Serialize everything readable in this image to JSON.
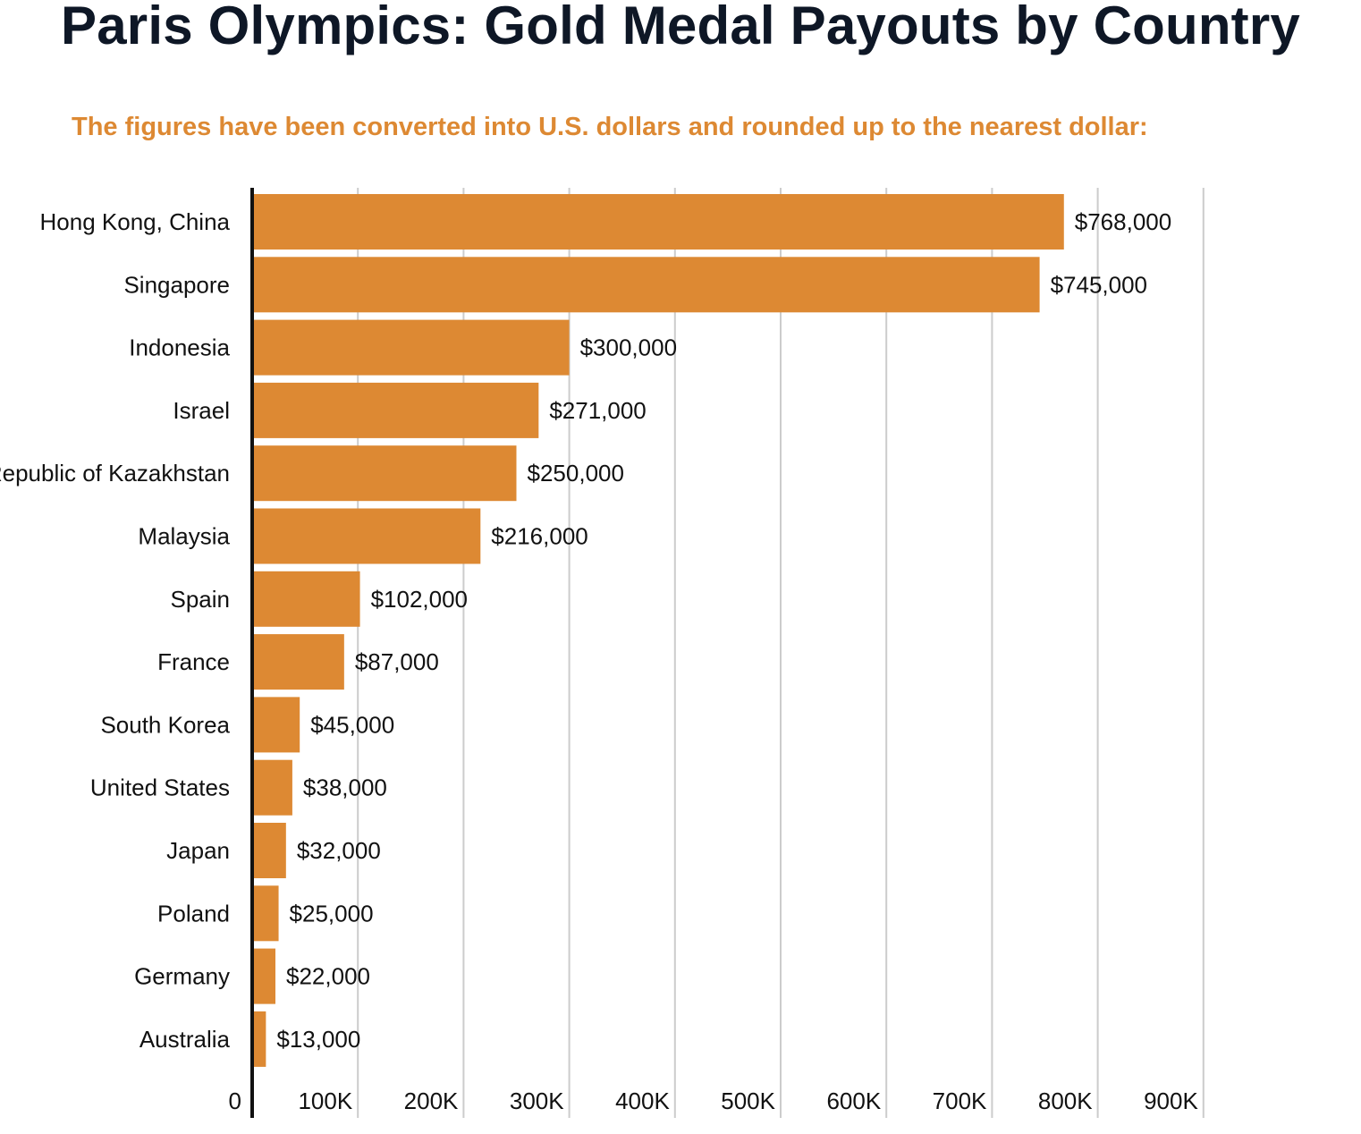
{
  "title": "Paris Olympics: Gold Medal Payouts by Country",
  "subtitle": "The figures have been converted into U.S. dollars and rounded up to the nearest dollar:",
  "colors": {
    "bar": "#dd8933",
    "subtitle": "#dd8933",
    "title": "#0e1726",
    "grid": "#cccccc",
    "axis": "#111111"
  },
  "chart_data": {
    "type": "bar",
    "orientation": "horizontal",
    "categories": [
      "Hong Kong, China",
      "Singapore",
      "Indonesia",
      "Israel",
      "Republic of Kazakhstan",
      "Malaysia",
      "Spain",
      "France",
      "South Korea",
      "United States",
      "Japan",
      "Poland",
      "Germany",
      "Australia"
    ],
    "values": [
      768000,
      745000,
      300000,
      271000,
      250000,
      216000,
      102000,
      87000,
      45000,
      38000,
      32000,
      25000,
      22000,
      13000
    ],
    "value_labels": [
      "$768,000",
      "$745,000",
      "$300,000",
      "$271,000",
      "$250,000",
      "$216,000",
      "$102,000",
      "$87,000",
      "$45,000",
      "$38,000",
      "$32,000",
      "$25,000",
      "$22,000",
      "$13,000"
    ],
    "x_ticks": [
      0,
      100000,
      200000,
      300000,
      400000,
      500000,
      600000,
      700000,
      800000,
      900000
    ],
    "x_tick_labels": [
      "0",
      "100K",
      "200K",
      "300K",
      "400K",
      "500K",
      "600K",
      "700K",
      "800K",
      "900K"
    ],
    "xlim": [
      0,
      900000
    ],
    "grid": true,
    "legend": "none"
  }
}
